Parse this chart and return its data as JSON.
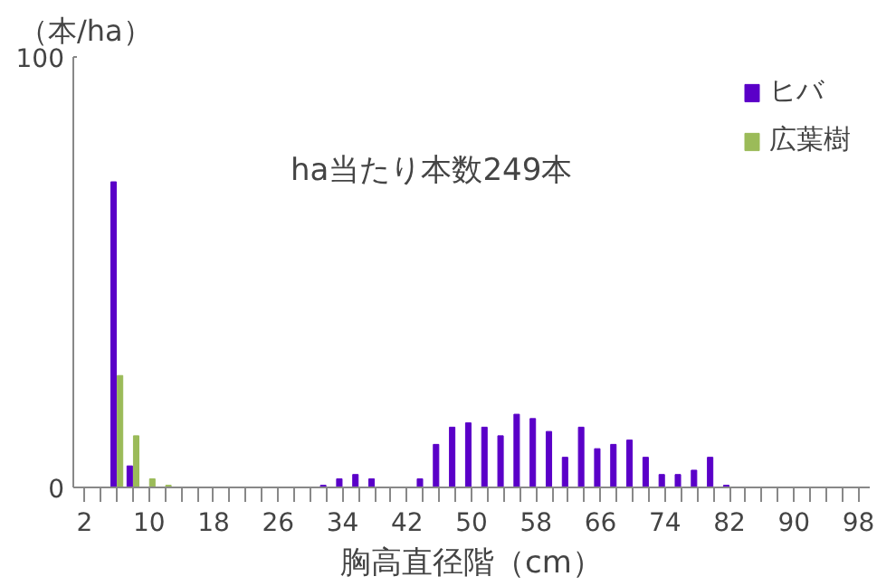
{
  "chart_data": {
    "type": "bar",
    "ylabel": "（本/ha）",
    "xlabel": "胸高直径階（cm）",
    "annotations": [
      "ha当たり本数249本"
    ],
    "categories": [
      "2",
      null,
      null,
      null,
      "10",
      null,
      null,
      null,
      "18",
      null,
      null,
      null,
      "26",
      null,
      null,
      null,
      "34",
      null,
      null,
      null,
      "42",
      null,
      null,
      null,
      "50",
      null,
      null,
      null,
      "58",
      null,
      null,
      null,
      "66",
      null,
      null,
      null,
      "74",
      null,
      null,
      null,
      "82",
      null,
      null,
      null,
      "90",
      null,
      null,
      null,
      "98"
    ],
    "series": [
      {
        "name": "ヒバ",
        "color": "#5a00c8",
        "values": [
          0,
          0,
          71,
          5,
          0,
          0,
          0,
          0,
          0,
          0,
          0,
          0,
          0,
          0,
          0,
          0.5,
          2,
          3,
          2,
          0,
          0,
          2,
          10,
          14,
          15,
          14,
          12,
          17,
          16,
          13,
          7,
          14,
          9,
          10,
          11,
          7,
          3,
          3,
          4,
          7,
          0.5,
          0,
          0,
          0,
          0,
          0,
          0,
          0,
          0
        ]
      },
      {
        "name": "広葉樹",
        "color": "#9bbb59",
        "values": [
          0,
          0,
          26,
          12,
          2,
          0.5,
          0,
          0,
          0,
          0,
          0,
          0,
          0,
          0,
          0,
          0,
          0,
          0,
          0,
          0,
          0,
          0,
          0,
          0,
          0,
          0,
          0,
          0,
          0,
          0,
          0,
          0,
          0,
          0,
          0,
          0,
          0,
          0,
          0,
          0,
          0,
          0,
          0,
          0,
          0,
          0,
          0,
          0,
          0
        ]
      }
    ],
    "ylim": [
      0,
      100
    ],
    "yticks": [
      0,
      100
    ],
    "grid": false,
    "legend": "top right"
  }
}
